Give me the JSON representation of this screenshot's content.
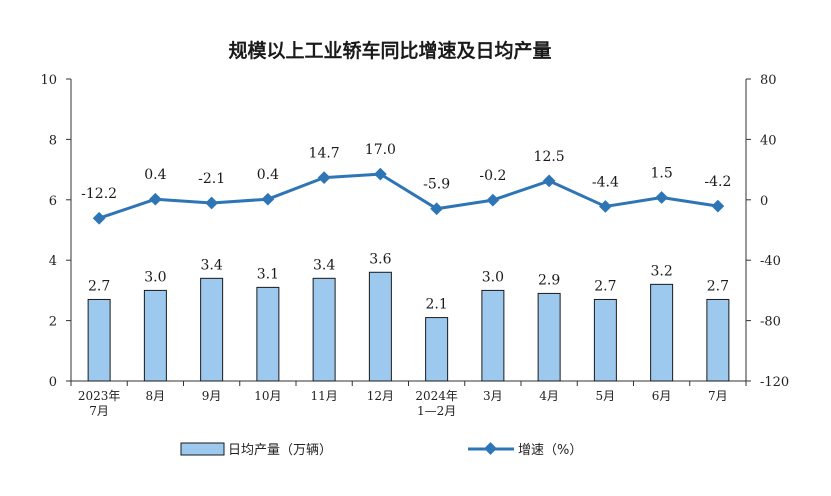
{
  "chart_data": {
    "type": "bar+line",
    "title": "规模以上工业轿车同比增速及日均产量",
    "categories": [
      "2023年\n7月",
      "8月",
      "9月",
      "10月",
      "11月",
      "12月",
      "2024年\n1—2月",
      "3月",
      "4月",
      "5月",
      "6月",
      "7月"
    ],
    "series": [
      {
        "name": "日均产量（万辆）",
        "type": "bar",
        "axis": "left",
        "color": "#9dc9ef",
        "values": [
          2.7,
          3.0,
          3.4,
          3.1,
          3.4,
          3.6,
          2.1,
          3.0,
          2.9,
          2.7,
          3.2,
          2.7
        ],
        "labels": [
          "2.7",
          "3.0",
          "3.4",
          "3.1",
          "3.4",
          "3.6",
          "2.1",
          "3.0",
          "2.9",
          "2.7",
          "3.2",
          "2.7"
        ]
      },
      {
        "name": "增速（%）",
        "type": "line",
        "axis": "right",
        "color": "#2e75b6",
        "values": [
          -12.2,
          0.4,
          -2.1,
          0.4,
          14.7,
          17.0,
          -5.9,
          -0.2,
          12.5,
          -4.4,
          1.5,
          -4.2
        ],
        "labels": [
          "-12.2",
          "0.4",
          "-2.1",
          "0.4",
          "14.7",
          "17.0",
          "-5.9",
          "-0.2",
          "12.5",
          "-4.4",
          "1.5",
          "-4.2"
        ]
      }
    ],
    "y_left": {
      "lim": [
        0,
        10
      ],
      "ticks": [
        "0",
        "2",
        "4",
        "6",
        "8",
        "10"
      ]
    },
    "y_right": {
      "lim": [
        -120,
        80
      ],
      "ticks": [
        "-120",
        "-80",
        "-40",
        "0",
        "40",
        "80"
      ]
    },
    "grid": false,
    "legend_position": "bottom"
  }
}
